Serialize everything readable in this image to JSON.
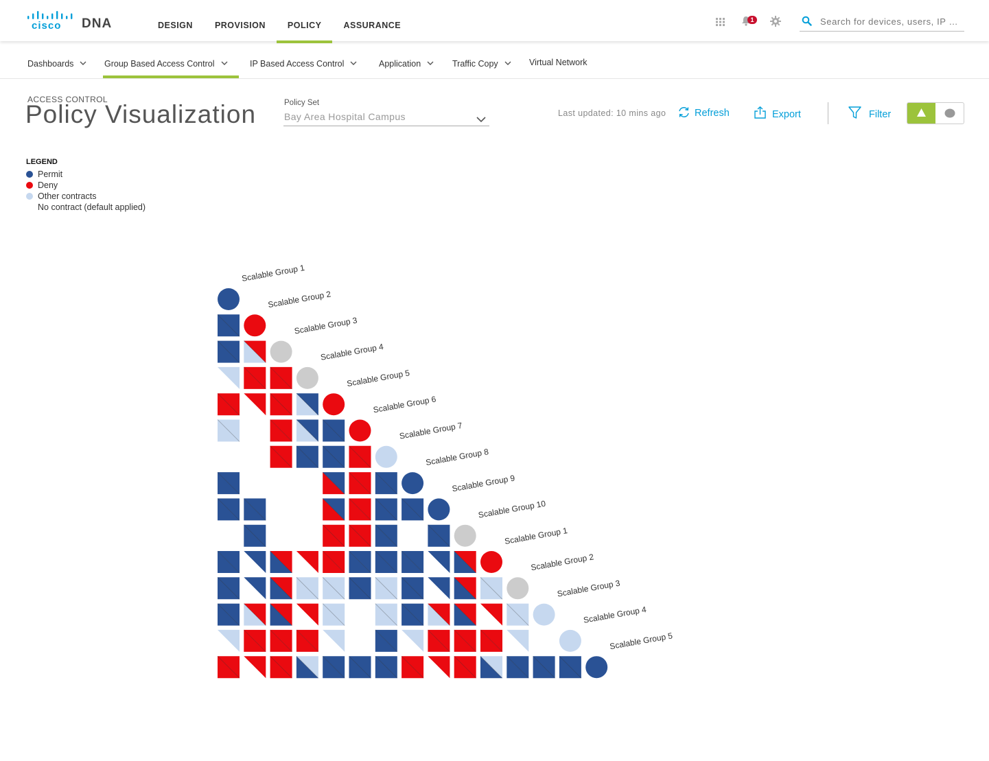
{
  "app": {
    "brand": "cisco",
    "product": "DNA"
  },
  "main_nav": [
    {
      "label": "DESIGN",
      "active": false
    },
    {
      "label": "PROVISION",
      "active": false
    },
    {
      "label": "POLICY",
      "active": true
    },
    {
      "label": "ASSURANCE",
      "active": false
    }
  ],
  "top_icons": {
    "apps": "apps-grid-icon",
    "notifications": "bell-icon",
    "notification_count": "1",
    "settings": "gear-icon"
  },
  "search": {
    "placeholder": "Search for devices, users, IP …"
  },
  "sub_nav": [
    {
      "label": "Dashboards",
      "has_menu": true,
      "active": false
    },
    {
      "label": "Group Based Access Control",
      "has_menu": true,
      "active": true
    },
    {
      "label": "IP Based Access Control",
      "has_menu": true,
      "active": false
    },
    {
      "label": "Application",
      "has_menu": true,
      "active": false
    },
    {
      "label": "Traffic Copy",
      "has_menu": true,
      "active": false
    },
    {
      "label": "Virtual Network",
      "has_menu": false,
      "active": false
    }
  ],
  "page": {
    "eyebrow": "ACCESS CONTROL",
    "title": "Policy Visualization",
    "policy_set_label": "Policy Set",
    "policy_set_value": "Bay Area Hospital Campus",
    "last_updated": "Last updated: 10 mins ago",
    "refresh_label": "Refresh",
    "export_label": "Export",
    "filter_label": "Filter",
    "view_toggle": {
      "selected": "triangle-view",
      "options": [
        "triangle-view",
        "circle-view"
      ]
    }
  },
  "legend": {
    "title": "LEGEND",
    "items": [
      {
        "label": "Permit",
        "color": "#2a5295"
      },
      {
        "label": "Deny",
        "color": "#ea0a10"
      },
      {
        "label": "Other contracts",
        "color": "#c6d8ef"
      },
      {
        "label": "No contract (default applied)",
        "color": ""
      }
    ]
  },
  "colors": {
    "P": "#2a5295",
    "D": "#ea0a10",
    "O": "#c6d8ef",
    "accent": "#9cc33c",
    "link": "#049fd9"
  },
  "matrix": {
    "groups": [
      "Scalable Group 1",
      "Scalable Group 2",
      "Scalable Group 3",
      "Scalable Group 4",
      "Scalable Group 5",
      "Scalable Group 6",
      "Scalable Group 7",
      "Scalable Group 8",
      "Scalable Group 9",
      "Scalable Group 10",
      "Scalable Group 1",
      "Scalable Group 2",
      "Scalable Group 3",
      "Scalable Group 4",
      "Scalable Group 5"
    ],
    "rows": [
      [
        "P"
      ],
      [
        "P",
        "D"
      ],
      [
        "P",
        "OD",
        ""
      ],
      [
        "-O",
        "D",
        "D",
        ""
      ],
      [
        "D",
        "-D",
        "D",
        "OP",
        "D"
      ],
      [
        "O",
        "",
        "D",
        "OP",
        "P",
        "D"
      ],
      [
        "",
        "",
        "D",
        "P",
        "P",
        "D",
        "O"
      ],
      [
        "P",
        "",
        "",
        "",
        "DP",
        "D",
        "P",
        "P"
      ],
      [
        "P",
        "P",
        "",
        "",
        "DP",
        "D",
        "P",
        "P",
        "P"
      ],
      [
        "",
        "P",
        "",
        "",
        "D",
        "D",
        "P",
        "",
        "P",
        ""
      ],
      [
        "P",
        "-P",
        "PD",
        "-D",
        "D",
        "P",
        "P",
        "P",
        "-P",
        "PD",
        "D"
      ],
      [
        "P",
        "-P",
        "PD",
        "O",
        "O",
        "P",
        "O",
        "P",
        "-P",
        "PD",
        "O",
        ""
      ],
      [
        "P",
        "OD",
        "PD",
        "-D",
        "O",
        "",
        "O",
        "P",
        "OD",
        "PD",
        "-D",
        "O",
        "O"
      ],
      [
        "-O",
        "D",
        "D",
        "D",
        "-O",
        "",
        "P",
        "-O",
        "D",
        "D",
        "D",
        "-O",
        "",
        "O"
      ],
      [
        "D",
        "-D",
        "D",
        "PO",
        "P",
        "P",
        "P",
        "D",
        "-D",
        "D",
        "PO",
        "P",
        "P",
        "P",
        "P"
      ]
    ]
  }
}
